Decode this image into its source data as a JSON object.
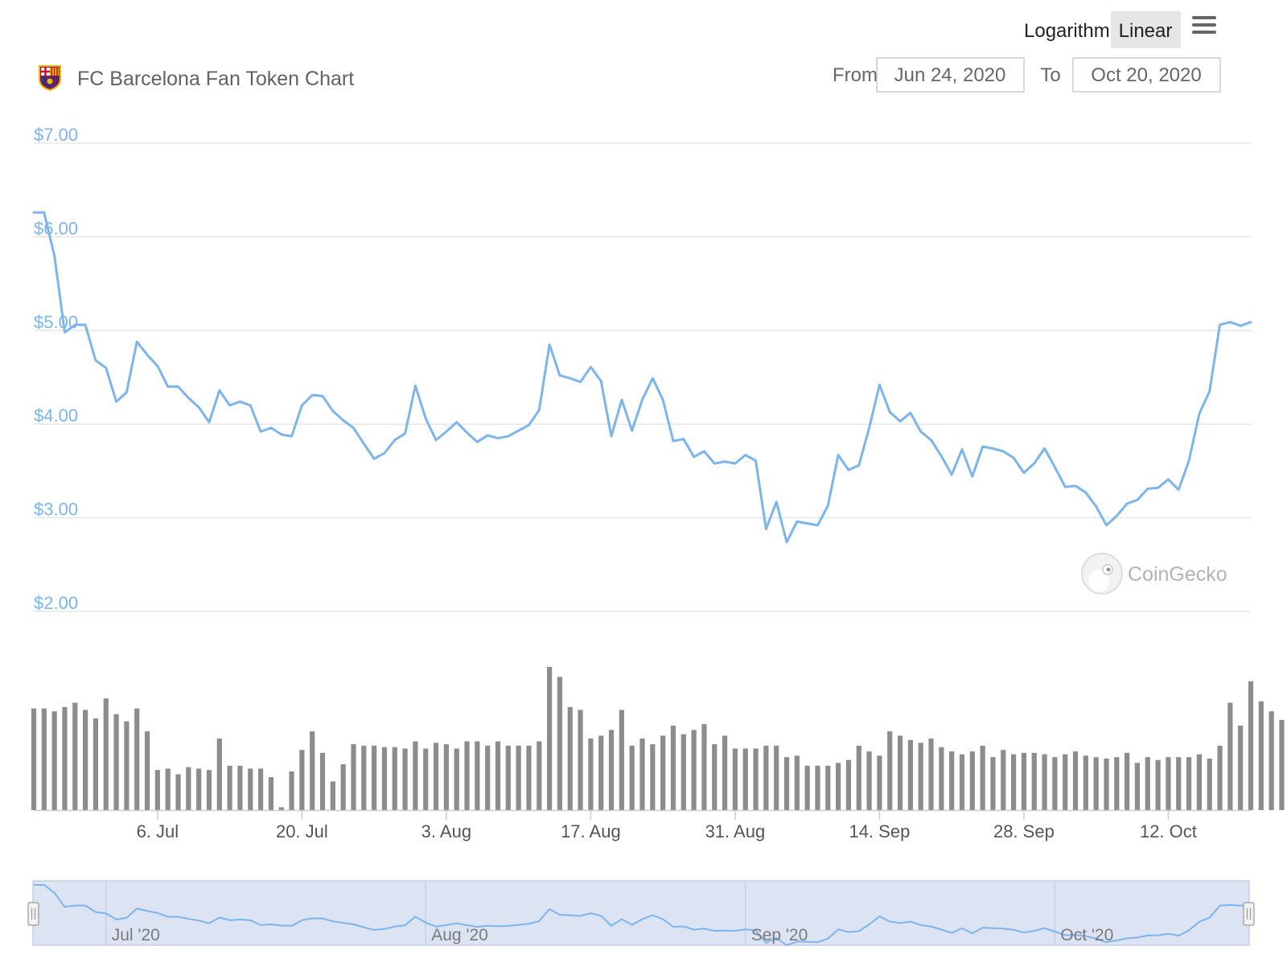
{
  "title": "FC Barcelona Fan Token Chart",
  "scale_buttons": {
    "logarithmic": "Logarithmic",
    "linear": "Linear",
    "selected": "linear"
  },
  "range": {
    "from_label": "From",
    "from_value": "Jun 24, 2020",
    "to_label": "To",
    "to_value": "Oct 20, 2020"
  },
  "watermark": "CoinGecko",
  "colors": {
    "price_line": "#7cb5ec",
    "volume_bar": "#8c8c8c",
    "navigator_fill": "#dce3f3",
    "axis_label": "#7cb5ec"
  },
  "chart_data": {
    "type": "line",
    "y_axis": {
      "ticks": [
        "$7.00",
        "$6.00",
        "$5.00",
        "$4.00",
        "$3.00",
        "$2.00"
      ],
      "tick_values": [
        7,
        6,
        5,
        4,
        3,
        2
      ],
      "ylim": [
        2,
        7
      ]
    },
    "x_axis": {
      "ticks": [
        "6. Jul",
        "20. Jul",
        "3. Aug",
        "17. Aug",
        "31. Aug",
        "14. Sep",
        "28. Sep",
        "12. Oct"
      ],
      "tick_dates": [
        "2020-07-06",
        "2020-07-20",
        "2020-08-03",
        "2020-08-17",
        "2020-08-31",
        "2020-09-14",
        "2020-09-28",
        "2020-10-12"
      ]
    },
    "navigator": {
      "labels": [
        "Jul '20",
        "Aug '20",
        "Sep '20",
        "Oct '20"
      ],
      "label_dates": [
        "2020-07-01",
        "2020-08-01",
        "2020-09-01",
        "2020-10-01"
      ]
    },
    "series": [
      {
        "name": "Price",
        "start_date": "2020-06-24",
        "values": [
          6.26,
          6.26,
          5.8,
          4.98,
          5.06,
          5.06,
          4.68,
          4.6,
          4.24,
          4.34,
          4.88,
          4.74,
          4.62,
          4.4,
          4.4,
          4.28,
          4.18,
          4.02,
          4.36,
          4.2,
          4.24,
          4.2,
          3.92,
          3.96,
          3.89,
          3.87,
          4.2,
          4.31,
          4.3,
          4.14,
          4.04,
          3.96,
          3.79,
          3.63,
          3.69,
          3.83,
          3.9,
          4.41,
          4.06,
          3.83,
          3.92,
          4.02,
          3.91,
          3.81,
          3.88,
          3.85,
          3.87,
          3.93,
          3.99,
          4.15,
          4.85,
          4.52,
          4.49,
          4.45,
          4.61,
          4.46,
          3.87,
          4.26,
          3.93,
          4.26,
          4.49,
          4.26,
          3.82,
          3.84,
          3.65,
          3.71,
          3.58,
          3.6,
          3.58,
          3.67,
          3.61,
          2.88,
          3.17,
          2.74,
          2.96,
          2.94,
          2.92,
          3.13,
          3.67,
          3.51,
          3.56,
          3.96,
          4.42,
          4.13,
          4.03,
          4.12,
          3.92,
          3.83,
          3.66,
          3.46,
          3.73,
          3.44,
          3.76,
          3.74,
          3.71,
          3.64,
          3.48,
          3.58,
          3.74,
          3.54,
          3.33,
          3.34,
          3.27,
          3.12,
          2.92,
          3.02,
          3.15,
          3.19,
          3.31,
          3.32,
          3.41,
          3.3,
          3.61,
          4.11,
          4.35,
          5.06,
          5.09,
          5.05,
          5.09
        ]
      },
      {
        "name": "Volume",
        "start_date": "2020-06-24",
        "relative_values": [
          0.71,
          0.71,
          0.69,
          0.72,
          0.75,
          0.7,
          0.64,
          0.78,
          0.67,
          0.62,
          0.71,
          0.55,
          0.28,
          0.29,
          0.25,
          0.3,
          0.29,
          0.28,
          0.5,
          0.31,
          0.31,
          0.29,
          0.29,
          0.23,
          0.02,
          0.27,
          0.42,
          0.55,
          0.4,
          0.2,
          0.32,
          0.46,
          0.45,
          0.45,
          0.44,
          0.44,
          0.43,
          0.48,
          0.43,
          0.47,
          0.46,
          0.43,
          0.48,
          0.48,
          0.45,
          0.48,
          0.45,
          0.45,
          0.45,
          0.48,
          1.0,
          0.93,
          0.72,
          0.7,
          0.5,
          0.52,
          0.56,
          0.7,
          0.45,
          0.5,
          0.46,
          0.52,
          0.59,
          0.53,
          0.56,
          0.6,
          0.46,
          0.52,
          0.43,
          0.43,
          0.43,
          0.45,
          0.45,
          0.37,
          0.38,
          0.31,
          0.31,
          0.31,
          0.33,
          0.35,
          0.45,
          0.41,
          0.38,
          0.55,
          0.52,
          0.49,
          0.47,
          0.5,
          0.44,
          0.41,
          0.39,
          0.41,
          0.45,
          0.37,
          0.42,
          0.39,
          0.4,
          0.4,
          0.39,
          0.37,
          0.39,
          0.41,
          0.38,
          0.37,
          0.36,
          0.37,
          0.4,
          0.33,
          0.37,
          0.35,
          0.37,
          0.37,
          0.37,
          0.39,
          0.36,
          0.45,
          0.75,
          0.59,
          0.9,
          0.76,
          0.69,
          0.63
        ]
      }
    ]
  }
}
